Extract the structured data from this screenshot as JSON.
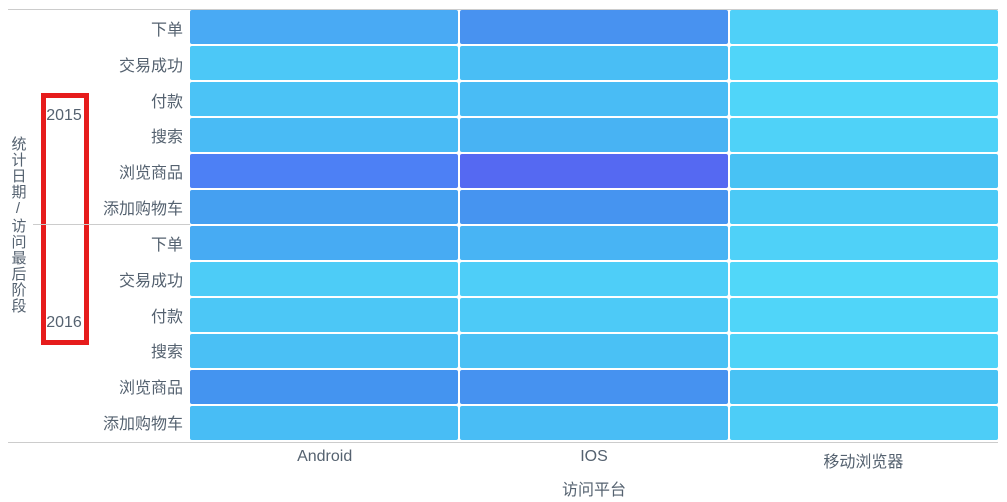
{
  "chart_data": {
    "type": "heatmap",
    "x_axis": {
      "label": "访问平台",
      "categories": [
        "Android",
        "IOS",
        "移动浏览器"
      ]
    },
    "y_axis": {
      "label": "统计日期/访问最后阶段",
      "groups": [
        {
          "label": "2015",
          "stages": [
            "下单",
            "交易成功",
            "付款",
            "搜索",
            "浏览商品",
            "添加购物车"
          ]
        },
        {
          "label": "2016",
          "stages": [
            "下单",
            "交易成功",
            "付款",
            "搜索",
            "浏览商品",
            "添加购物车"
          ]
        }
      ]
    },
    "rows": [
      {
        "group": "2015",
        "stage": "下单",
        "cell_colors": [
          "#49aaf4",
          "#4892f0",
          "#4fd0f8"
        ]
      },
      {
        "group": "2015",
        "stage": "交易成功",
        "cell_colors": [
          "#4cc8f7",
          "#49bef5",
          "#50d5f9"
        ]
      },
      {
        "group": "2015",
        "stage": "付款",
        "cell_colors": [
          "#4bc3f6",
          "#49bcf5",
          "#50d5f9"
        ]
      },
      {
        "group": "2015",
        "stage": "搜索",
        "cell_colors": [
          "#49bbf5",
          "#48b3f3",
          "#4fd2f8"
        ]
      },
      {
        "group": "2015",
        "stage": "浏览商品",
        "cell_colors": [
          "#4d80f5",
          "#5569f2",
          "#48c2f4"
        ]
      },
      {
        "group": "2015",
        "stage": "添加购物车",
        "cell_colors": [
          "#45a0f1",
          "#4694f0",
          "#4bc9f6"
        ]
      },
      {
        "group": "2016",
        "stage": "下单",
        "cell_colors": [
          "#47abf3",
          "#48b4f4",
          "#4fd1f8"
        ]
      },
      {
        "group": "2016",
        "stage": "交易成功",
        "cell_colors": [
          "#4dccf7",
          "#4ecef8",
          "#51d7f9"
        ]
      },
      {
        "group": "2016",
        "stage": "付款",
        "cell_colors": [
          "#4cc7f6",
          "#4dcaf7",
          "#50d5f9"
        ]
      },
      {
        "group": "2016",
        "stage": "搜索",
        "cell_colors": [
          "#4ac0f5",
          "#4ac1f5",
          "#4fd3f8"
        ]
      },
      {
        "group": "2016",
        "stage": "浏览商品",
        "cell_colors": [
          "#4494f0",
          "#4692f0",
          "#48c2f4"
        ]
      },
      {
        "group": "2016",
        "stage": "添加购物车",
        "cell_colors": [
          "#48bdf5",
          "#49bdf5",
          "#4dcdf7"
        ]
      }
    ],
    "annotation": {
      "shape": "rectangle-outline",
      "color": "#e61c1c",
      "highlights": [
        "2015",
        "2016"
      ]
    },
    "style": {
      "label_color": "#556270",
      "axis_line_color": "#cccccc",
      "cell_gap_color": "#ffffff"
    }
  }
}
